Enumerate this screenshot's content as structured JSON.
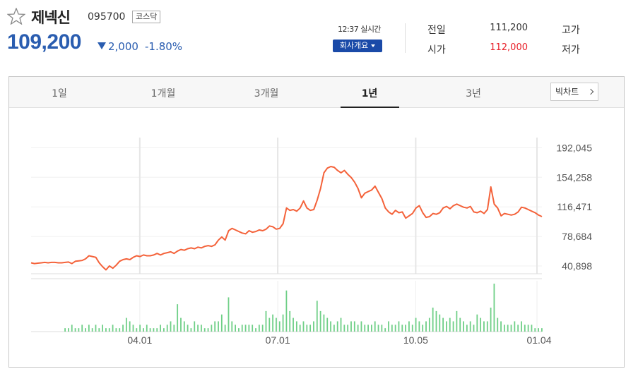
{
  "stock": {
    "name": "제넥신",
    "code": "095700",
    "market": "코스닥",
    "price": "109,200",
    "change": "2,000",
    "change_rate": "-1.80%",
    "direction": "down",
    "realtime_label": "12:37 실시간",
    "company_button": "회사개요"
  },
  "quote": {
    "prev_close_label": "전일",
    "prev_close": "111,200",
    "open_label": "시가",
    "open": "112,000",
    "high_label": "고가",
    "low_label": "저가"
  },
  "tabs": [
    {
      "label": "1일"
    },
    {
      "label": "1개월"
    },
    {
      "label": "3개월"
    },
    {
      "label": "1년",
      "active": true
    },
    {
      "label": "3년"
    }
  ],
  "bigchart_label": "빅차트",
  "colors": {
    "price_blue": "#2a5db0",
    "red": "#e8212a",
    "line": "#f4623a",
    "volume": "#6fcf87",
    "button": "#1a4aa8"
  },
  "chart_data": {
    "type": "line",
    "title": "",
    "y_ticks": [
      "192,045",
      "154,258",
      "116,471",
      "78,684",
      "40,898"
    ],
    "y_tick_values": [
      192045,
      154258,
      116471,
      78684,
      40898
    ],
    "ylim": [
      31000,
      205000
    ],
    "x_ticks": [
      {
        "label": "04.01",
        "index": 26
      },
      {
        "label": "07.01",
        "index": 59
      },
      {
        "label": "10.05",
        "index": 92
      },
      {
        "label": "01.04",
        "index": 121
      }
    ],
    "price": [
      45000,
      44000,
      44500,
      45000,
      45500,
      45000,
      45500,
      45500,
      45000,
      45000,
      45500,
      46000,
      44000,
      47000,
      47500,
      48000,
      50000,
      54000,
      53000,
      52000,
      45000,
      40000,
      36000,
      41000,
      38000,
      42000,
      47000,
      49000,
      50000,
      49000,
      52000,
      54000,
      53000,
      55000,
      54000,
      54000,
      55000,
      57000,
      55000,
      57000,
      58000,
      59000,
      57000,
      60000,
      62000,
      61000,
      63000,
      64000,
      63000,
      65000,
      64000,
      66000,
      67000,
      66000,
      68000,
      74000,
      78000,
      74000,
      86000,
      89000,
      87000,
      85000,
      83000,
      82000,
      86000,
      84000,
      85000,
      87000,
      86000,
      88000,
      92000,
      91000,
      88000,
      89000,
      95000,
      115000,
      112000,
      113000,
      111000,
      115000,
      124000,
      115000,
      112000,
      113000,
      125000,
      140000,
      160000,
      166000,
      168000,
      167000,
      163000,
      160000,
      163000,
      158000,
      154000,
      148000,
      140000,
      128000,
      134000,
      136000,
      138000,
      143000,
      135000,
      127000,
      115000,
      110000,
      107000,
      112000,
      109000,
      110000,
      102000,
      105000,
      108000,
      115000,
      118000,
      109000,
      103000,
      104000,
      108000,
      107000,
      109000,
      115000,
      117000,
      114000,
      118000,
      120000,
      118000,
      116000,
      115000,
      117000,
      110000,
      109000,
      111000,
      108000,
      113000,
      142000,
      120000,
      115000,
      105000,
      108000,
      107000,
      106000,
      107000,
      110000,
      116000,
      115000,
      113000,
      111000,
      109000,
      106000,
      104000
    ],
    "volume": [
      0,
      0,
      0,
      0,
      0,
      0,
      0,
      0,
      0,
      0,
      1,
      1,
      2,
      1,
      1,
      2,
      1,
      2,
      1,
      2,
      1,
      2,
      1,
      1,
      2,
      1,
      1,
      2,
      4,
      3,
      2,
      1,
      2,
      1,
      2,
      1,
      1,
      1,
      2,
      1,
      2,
      3,
      2,
      8,
      4,
      3,
      2,
      1,
      3,
      2,
      2,
      1,
      1,
      2,
      3,
      3,
      5,
      2,
      10,
      3,
      2,
      1,
      2,
      2,
      2,
      2,
      1,
      2,
      2,
      6,
      4,
      5,
      4,
      3,
      5,
      12,
      6,
      4,
      3,
      2,
      3,
      2,
      2,
      3,
      9,
      6,
      5,
      4,
      3,
      2,
      3,
      4,
      2,
      2,
      3,
      3,
      2,
      3,
      2,
      2,
      2,
      3,
      2,
      2,
      1,
      3,
      2,
      2,
      3,
      2,
      2,
      3,
      2,
      4,
      3,
      2,
      3,
      4,
      7,
      6,
      5,
      4,
      3,
      4,
      3,
      6,
      4,
      3,
      2,
      3,
      2,
      5,
      4,
      3,
      3,
      7,
      14,
      4,
      3,
      2,
      2,
      2,
      3,
      2,
      3,
      2,
      2,
      2,
      1,
      1,
      1
    ]
  }
}
